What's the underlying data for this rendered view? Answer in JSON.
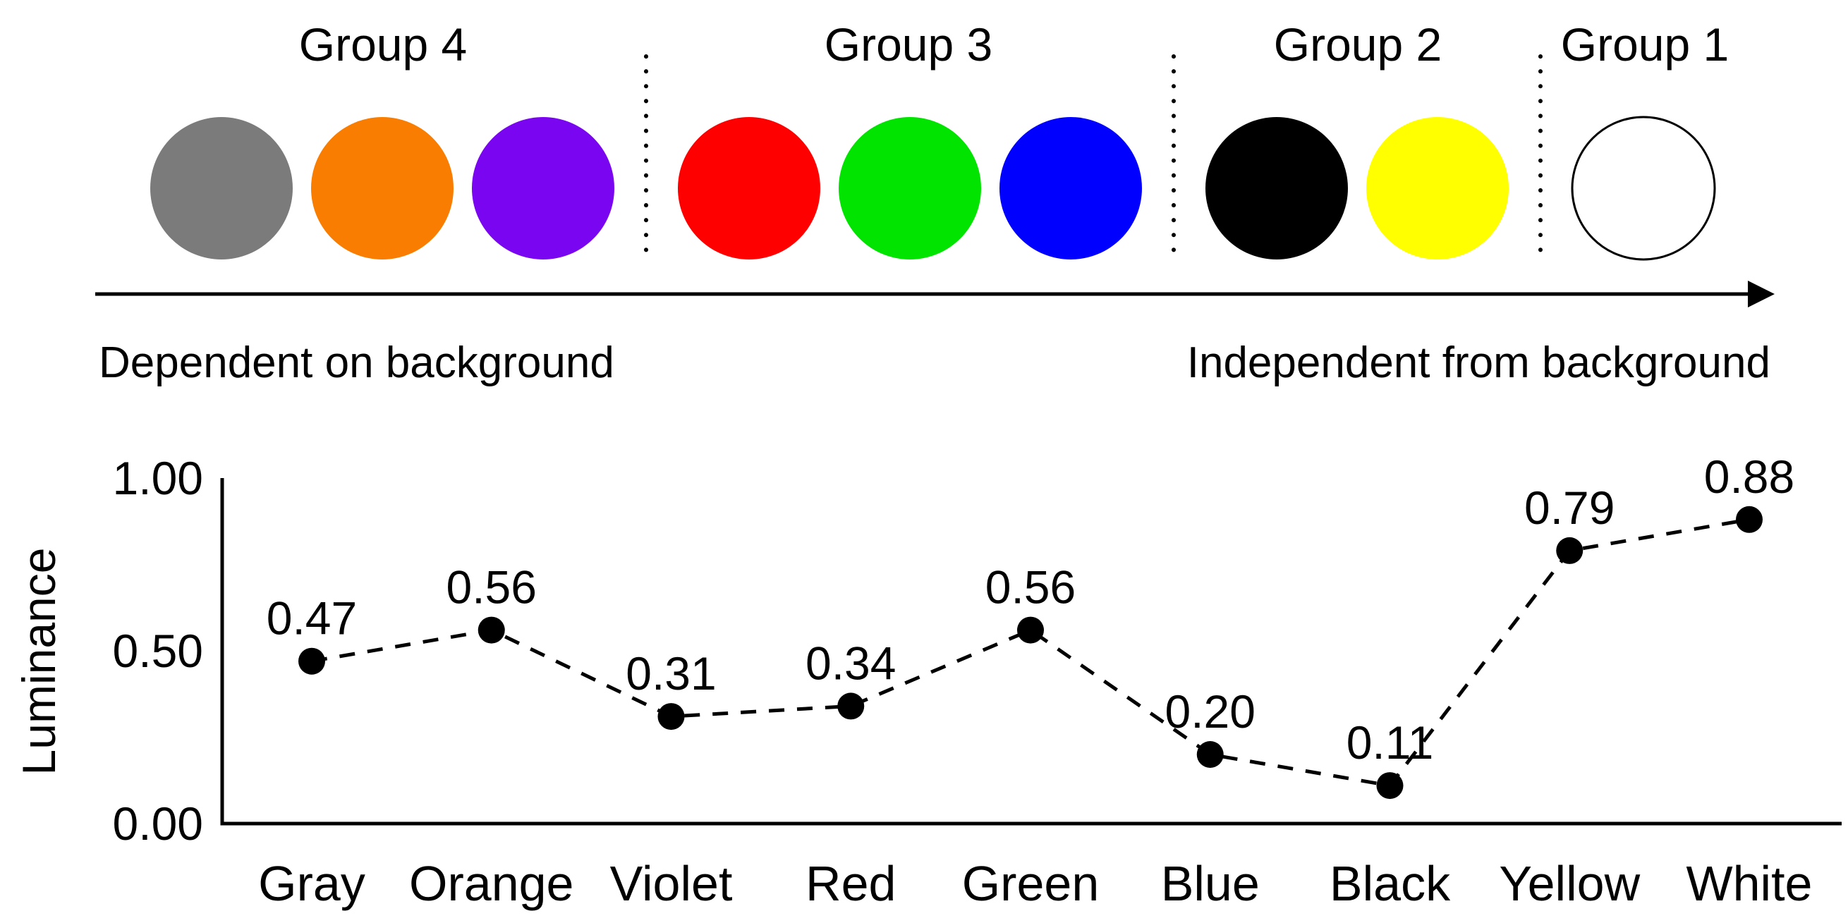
{
  "arrow": {
    "direction": "right",
    "left_label": "Dependent on background",
    "right_label": "Independent from background"
  },
  "groups": [
    {
      "label": "Group 4",
      "circles": [
        {
          "name": "gray",
          "color": "#7b7b7b"
        },
        {
          "name": "orange",
          "color": "#f97d00"
        },
        {
          "name": "violet",
          "color": "#7a05f0"
        }
      ]
    },
    {
      "label": "Group 3",
      "circles": [
        {
          "name": "red",
          "color": "#fe0000"
        },
        {
          "name": "green",
          "color": "#00e400"
        },
        {
          "name": "blue",
          "color": "#0000fe"
        }
      ]
    },
    {
      "label": "Group 2",
      "circles": [
        {
          "name": "black",
          "color": "#000000"
        },
        {
          "name": "yellow",
          "color": "#ffff00"
        }
      ]
    },
    {
      "label": "Group 1",
      "circles": [
        {
          "name": "white",
          "color": "#ffffff",
          "outlined": true,
          "outline_color": "#000000"
        }
      ]
    }
  ],
  "chart_data": {
    "type": "line",
    "categories": [
      "Gray",
      "Orange",
      "Violet",
      "Red",
      "Green",
      "Blue",
      "Black",
      "Yellow",
      "White"
    ],
    "values": [
      0.47,
      0.56,
      0.31,
      0.34,
      0.56,
      0.2,
      0.11,
      0.79,
      0.88
    ],
    "point_labels": [
      "0.47",
      "0.56",
      "0.31",
      "0.34",
      "0.56",
      "0.20",
      "0.11",
      "0.79",
      "0.88"
    ],
    "title": "",
    "xlabel": "",
    "ylabel": "Luminance",
    "ylim": [
      0.0,
      1.0
    ],
    "yticks": [
      {
        "value": 1.0,
        "label": "1.00"
      },
      {
        "value": 0.5,
        "label": "0.50"
      },
      {
        "value": 0.0,
        "label": "0.00"
      }
    ],
    "grid": false,
    "legend": "none",
    "line_style": "dashed",
    "line_color": "#000000",
    "marker": "filled-circle"
  }
}
